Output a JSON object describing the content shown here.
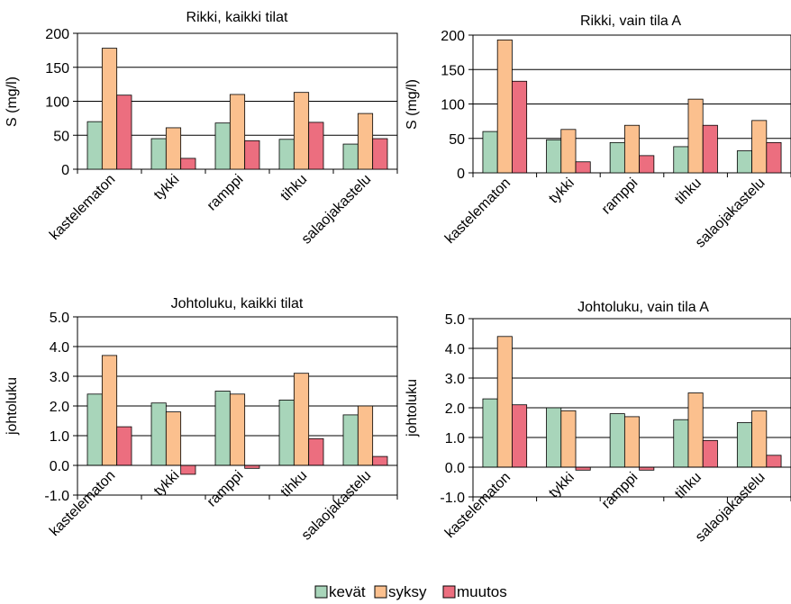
{
  "colors": {
    "kevat": "#a8d5ba",
    "syksy": "#fbc08e",
    "muutos": "#ec6e7f",
    "bar_stroke": "#000000",
    "grid": "#000000"
  },
  "legend": {
    "position": "bottom-center",
    "items": [
      {
        "label": "kevät",
        "color_key": "kevat"
      },
      {
        "label": "syksy",
        "color_key": "syksy"
      },
      {
        "label": "muutos",
        "color_key": "muutos"
      }
    ]
  },
  "chart_data": [
    {
      "type": "bar",
      "title": "Rikki, kaikki tilat",
      "ylabel": "S (mg/l)",
      "ylim": [
        0,
        200
      ],
      "yticks": [
        0,
        50,
        100,
        150,
        200
      ],
      "ytick_labels": [
        "0",
        "50",
        "100",
        "150",
        "200"
      ],
      "grid": true,
      "categories": [
        "kastelematon",
        "tykki",
        "ramppi",
        "tihku",
        "salaojakastelu"
      ],
      "series": [
        {
          "name": "kevät",
          "values": [
            70,
            45,
            68,
            44,
            37
          ]
        },
        {
          "name": "syksy",
          "values": [
            178,
            61,
            110,
            113,
            82
          ]
        },
        {
          "name": "muutos",
          "values": [
            109,
            16,
            42,
            69,
            45
          ]
        }
      ]
    },
    {
      "type": "bar",
      "title": "Rikki, vain tila A",
      "ylabel": "S (mg/l)",
      "ylim": [
        0,
        200
      ],
      "yticks": [
        0,
        50,
        100,
        150,
        200
      ],
      "ytick_labels": [
        "0",
        "50",
        "100",
        "150",
        "200"
      ],
      "grid": true,
      "categories": [
        "kastelematon",
        "tykki",
        "ramppi",
        "tihku",
        "salaojakastelu"
      ],
      "series": [
        {
          "name": "kevät",
          "values": [
            60,
            48,
            44,
            38,
            32
          ]
        },
        {
          "name": "syksy",
          "values": [
            193,
            63,
            69,
            107,
            76
          ]
        },
        {
          "name": "muutos",
          "values": [
            133,
            16,
            25,
            69,
            44
          ]
        }
      ]
    },
    {
      "type": "bar",
      "title": "Johtoluku, kaikki tilat",
      "ylabel": "johtoluku",
      "ylim": [
        -1,
        5
      ],
      "yticks": [
        -1,
        0,
        1,
        2,
        3,
        4,
        5
      ],
      "ytick_labels": [
        "-1.0",
        "0.0",
        "1.0",
        "2.0",
        "3.0",
        "4.0",
        "5.0"
      ],
      "grid": true,
      "categories": [
        "kastelematon",
        "tykki",
        "ramppi",
        "tihku",
        "salaojakastelu"
      ],
      "series": [
        {
          "name": "kevät",
          "values": [
            2.4,
            2.1,
            2.5,
            2.2,
            1.7
          ]
        },
        {
          "name": "syksy",
          "values": [
            3.7,
            1.8,
            2.4,
            3.1,
            2.0
          ]
        },
        {
          "name": "muutos",
          "values": [
            1.3,
            -0.3,
            -0.1,
            0.9,
            0.3
          ]
        }
      ]
    },
    {
      "type": "bar",
      "title": "Johtoluku, vain tila A",
      "ylabel": "johtoluku",
      "ylim": [
        -1,
        5
      ],
      "yticks": [
        -1,
        0,
        1,
        2,
        3,
        4,
        5
      ],
      "ytick_labels": [
        "-1.0",
        "0.0",
        "1.0",
        "2.0",
        "3.0",
        "4.0",
        "5.0"
      ],
      "grid": true,
      "categories": [
        "kastelematon",
        "tykki",
        "ramppi",
        "tihku",
        "salaojakastelu"
      ],
      "series": [
        {
          "name": "kevät",
          "values": [
            2.3,
            2.0,
            1.8,
            1.6,
            1.5
          ]
        },
        {
          "name": "syksy",
          "values": [
            4.4,
            1.9,
            1.7,
            2.5,
            1.9
          ]
        },
        {
          "name": "muutos",
          "values": [
            2.1,
            -0.1,
            -0.1,
            0.9,
            0.4
          ]
        }
      ]
    }
  ]
}
